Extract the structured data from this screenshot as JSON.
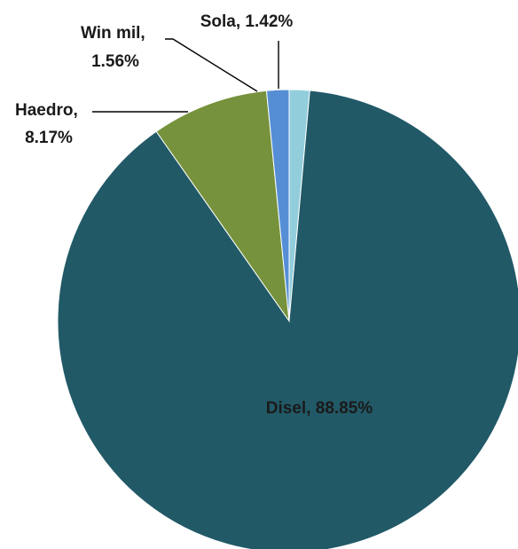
{
  "chart_data": {
    "type": "pie",
    "title": "",
    "slices": [
      {
        "name": "Sola",
        "value": 1.42,
        "label": "Sola, 1.42%",
        "color": "#92CDDC"
      },
      {
        "name": "Disel",
        "value": 88.85,
        "label": "Disel, 88.85%",
        "color": "#215967"
      },
      {
        "name": "Haedro",
        "value": 8.17,
        "label_lines": [
          "Haedro,",
          "8.17%"
        ],
        "color": "#76923C"
      },
      {
        "name": "Win mil",
        "value": 1.56,
        "label_lines": [
          "Win mil,",
          "1.56%"
        ],
        "color": "#558ED5"
      }
    ],
    "start_angle": "12 o'clock",
    "direction": "clockwise",
    "legend": "none"
  }
}
